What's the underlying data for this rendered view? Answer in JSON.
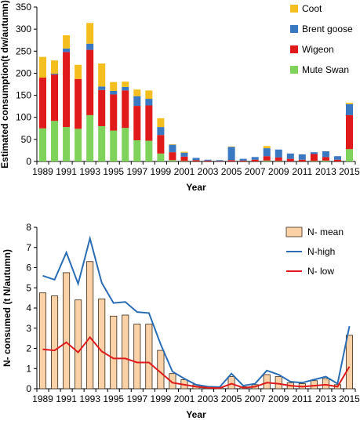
{
  "colors": {
    "coot": "#F5BE1F",
    "brent": "#3A78C2",
    "wigeon": "#E01A1A",
    "mute_swan": "#7FD35A",
    "n_mean_fill": "#FBD2A8",
    "n_mean_edge": "#3a2a1a",
    "n_high": "#2A6DB5",
    "n_low": "#E01A1A",
    "axis": "#000000"
  },
  "chart_data": [
    {
      "type": "bar",
      "stacked": true,
      "xlabel": "Year",
      "ylabel": "Estimated consumption(t dw/autumn)",
      "ylim": [
        0,
        350
      ],
      "yticks": [
        0,
        50,
        100,
        150,
        200,
        250,
        300,
        350
      ],
      "categories": [
        1989,
        1990,
        1991,
        1992,
        1993,
        1994,
        1995,
        1996,
        1997,
        1998,
        1999,
        2000,
        2001,
        2002,
        2003,
        2004,
        2005,
        2006,
        2007,
        2008,
        2009,
        2010,
        2011,
        2012,
        2013,
        2014,
        2015
      ],
      "xtick_labels": [
        "1989",
        "",
        "1991",
        "",
        "1993",
        "",
        "1995",
        "",
        "1997",
        "",
        "1999",
        "",
        "2001",
        "",
        "2003",
        "",
        "2005",
        "",
        "2007",
        "",
        "2009",
        "",
        "2011",
        "",
        "2013",
        "",
        "2015"
      ],
      "legend_position": "top-right",
      "series": [
        {
          "name": "Mute Swan",
          "color_key": "mute_swan",
          "values": [
            75,
            92,
            78,
            74,
            105,
            80,
            70,
            76,
            48,
            47,
            18,
            3,
            1,
            0,
            0,
            0,
            0,
            0,
            0,
            2,
            1,
            0,
            0,
            1,
            2,
            0,
            28
          ]
        },
        {
          "name": "Wigeon",
          "color_key": "wigeon",
          "values": [
            115,
            105,
            170,
            113,
            148,
            82,
            82,
            85,
            78,
            80,
            42,
            18,
            10,
            3,
            2,
            1,
            3,
            2,
            4,
            10,
            8,
            6,
            4,
            16,
            8,
            4,
            77
          ]
        },
        {
          "name": "Brent goose",
          "color_key": "brent",
          "values": [
            0,
            2,
            8,
            0,
            14,
            8,
            8,
            8,
            22,
            15,
            18,
            17,
            9,
            5,
            2,
            2,
            30,
            4,
            6,
            18,
            18,
            12,
            12,
            4,
            13,
            8,
            25
          ]
        },
        {
          "name": "Coot",
          "color_key": "coot",
          "values": [
            47,
            30,
            30,
            32,
            47,
            52,
            20,
            12,
            15,
            19,
            20,
            1,
            2,
            0,
            0,
            0,
            1,
            0,
            0,
            5,
            0,
            0,
            0,
            0,
            0,
            0,
            3
          ]
        }
      ]
    },
    {
      "type": "bar+line",
      "xlabel": "Year",
      "ylabel": "N- consumed (t N/autumn)",
      "ylim": [
        0,
        8
      ],
      "yticks": [
        0,
        1,
        2,
        3,
        4,
        5,
        6,
        7,
        8
      ],
      "categories": [
        1989,
        1990,
        1991,
        1992,
        1993,
        1994,
        1995,
        1996,
        1997,
        1998,
        1999,
        2000,
        2001,
        2002,
        2003,
        2004,
        2005,
        2006,
        2007,
        2008,
        2009,
        2010,
        2011,
        2012,
        2013,
        2014,
        2015
      ],
      "xtick_labels": [
        "1989",
        "",
        "1991",
        "",
        "1993",
        "",
        "1995",
        "",
        "1997",
        "",
        "1999",
        "",
        "2001",
        "",
        "2003",
        "",
        "2005",
        "",
        "2007",
        "",
        "2009",
        "",
        "2011",
        "",
        "2013",
        "",
        "2015"
      ],
      "legend_position": "top-right",
      "series": [
        {
          "name": "N- mean",
          "kind": "bar",
          "color_key": "n_mean_fill",
          "values": [
            4.75,
            4.6,
            5.75,
            4.4,
            6.3,
            4.45,
            3.6,
            3.65,
            3.2,
            3.2,
            1.9,
            0.75,
            0.45,
            0.2,
            0.1,
            0.07,
            0.6,
            0.1,
            0.2,
            0.7,
            0.6,
            0.3,
            0.25,
            0.4,
            0.5,
            0.2,
            2.65
          ]
        },
        {
          "name": "N-high",
          "kind": "line",
          "color_key": "n_high",
          "values": [
            5.6,
            5.4,
            6.75,
            5.2,
            7.45,
            5.25,
            4.25,
            4.3,
            3.8,
            3.75,
            2.2,
            0.85,
            0.5,
            0.2,
            0.1,
            0.08,
            0.75,
            0.15,
            0.25,
            0.9,
            0.7,
            0.35,
            0.3,
            0.45,
            0.6,
            0.25,
            3.1
          ]
        },
        {
          "name": "N- low",
          "kind": "line",
          "color_key": "n_low",
          "values": [
            1.95,
            1.9,
            2.3,
            1.8,
            2.55,
            1.85,
            1.5,
            1.5,
            1.3,
            1.3,
            0.8,
            0.3,
            0.2,
            0.1,
            0.05,
            0.03,
            0.25,
            0.05,
            0.1,
            0.3,
            0.25,
            0.15,
            0.1,
            0.15,
            0.2,
            0.1,
            1.1
          ]
        }
      ]
    }
  ]
}
